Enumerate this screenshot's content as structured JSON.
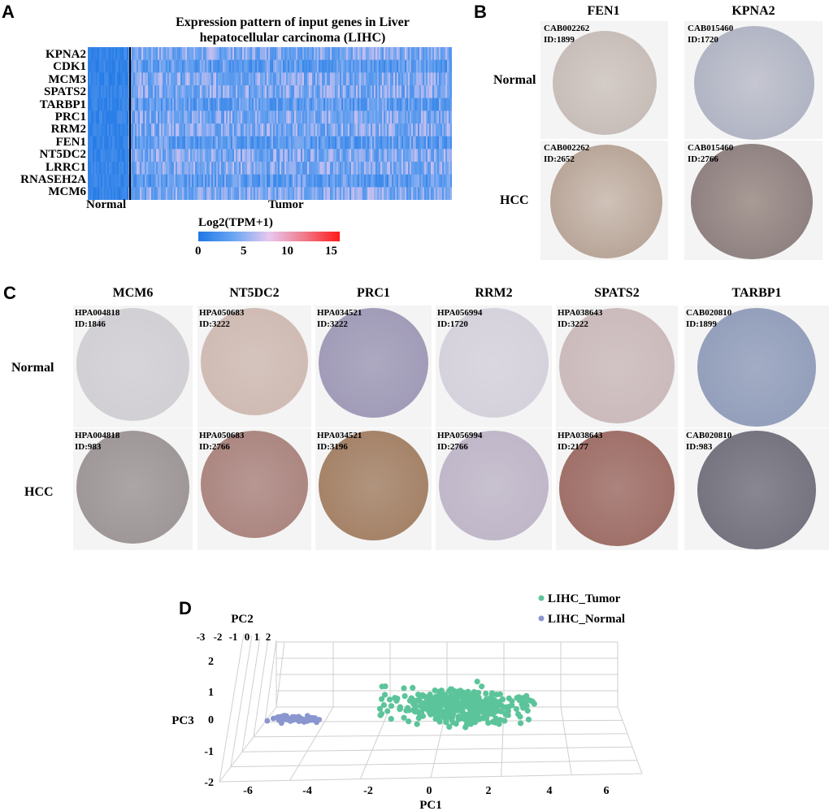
{
  "panels": {
    "a": "A",
    "b": "B",
    "c": "C",
    "d": "D"
  },
  "panel_a": {
    "title_line1": "Expression pattern of input genes in Liver",
    "title_line2": "hepatocellular carcinoma (LIHC)",
    "genes": [
      "KPNA2",
      "CDK1",
      "MCM3",
      "SPATS2",
      "TARBP1",
      "PRC1",
      "RRM2",
      "FEN1",
      "NT5DC2",
      "LRRC1",
      "RNASEH2A",
      "MCM6"
    ],
    "group_normal": "Normal",
    "group_tumor": "Tumor",
    "colorbar_title": "Log2(TPM+1)",
    "colorbar_ticks": [
      "0",
      "5",
      "10",
      "15"
    ],
    "colors": {
      "low": "#1f78e6",
      "mid": "#e8c8f0",
      "high": "#ff1a1a"
    }
  },
  "panel_b": {
    "columns": [
      "FEN1",
      "KPNA2"
    ],
    "rows": [
      "Normal",
      "HCC"
    ],
    "cores": [
      {
        "antibody": "CAB002262",
        "id": "ID:1899"
      },
      {
        "antibody": "CAB015460",
        "id": "ID:1720"
      },
      {
        "antibody": "CAB002262",
        "id": "ID:2652"
      },
      {
        "antibody": "CAB015460",
        "id": "ID:2766"
      }
    ]
  },
  "panel_c": {
    "columns": [
      "MCM6",
      "NT5DC2",
      "PRC1",
      "RRM2",
      "SPATS2",
      "TARBP1"
    ],
    "rows": [
      "Normal",
      "HCC"
    ],
    "normal_cores": [
      {
        "antibody": "HPA004818",
        "id": "ID:1846"
      },
      {
        "antibody": "HPA050683",
        "id": "ID:3222"
      },
      {
        "antibody": "HPA034521",
        "id": "ID:3222"
      },
      {
        "antibody": "HPA056994",
        "id": "ID:1720"
      },
      {
        "antibody": "HPA038643",
        "id": "ID:3222"
      },
      {
        "antibody": "CAB020810",
        "id": "ID:1899"
      }
    ],
    "hcc_cores": [
      {
        "antibody": "HPA004818",
        "id": "ID:983"
      },
      {
        "antibody": "HPA050683",
        "id": "ID:2766"
      },
      {
        "antibody": "HPA034521",
        "id": "ID:3196"
      },
      {
        "antibody": "HPA056994",
        "id": "ID:2766"
      },
      {
        "antibody": "HPA038643",
        "id": "ID:2177"
      },
      {
        "antibody": "CAB020810",
        "id": "ID:983"
      }
    ]
  },
  "chart_data": {
    "type": "scatter",
    "title": "",
    "xlabel": "PC1",
    "ylabel": "PC3",
    "zlabel": "PC2",
    "x_ticks": [
      "-6",
      "-4",
      "-2",
      "0",
      "2",
      "4",
      "6"
    ],
    "y_ticks": [
      "-2",
      "-1",
      "0",
      "1",
      "2"
    ],
    "z_ticks": [
      "-3",
      "-2",
      "-1",
      "0",
      "1",
      "2"
    ],
    "xlim": [
      -7,
      7
    ],
    "ylim": [
      -2,
      2.5
    ],
    "legend": [
      {
        "name": "LIHC_Tumor",
        "color": "#5cc49a"
      },
      {
        "name": "LIHC_Normal",
        "color": "#8a96cf"
      }
    ],
    "series": [
      {
        "name": "LIHC_Tumor",
        "n_points": 371,
        "pc1_range": [
          -3.5,
          6.5
        ],
        "pc3_range": [
          -1.2,
          2.3
        ]
      },
      {
        "name": "LIHC_Normal",
        "n_points": 50,
        "pc1_range": [
          -5.8,
          -2.5
        ],
        "pc3_range": [
          -0.1,
          0.4
        ]
      }
    ]
  }
}
